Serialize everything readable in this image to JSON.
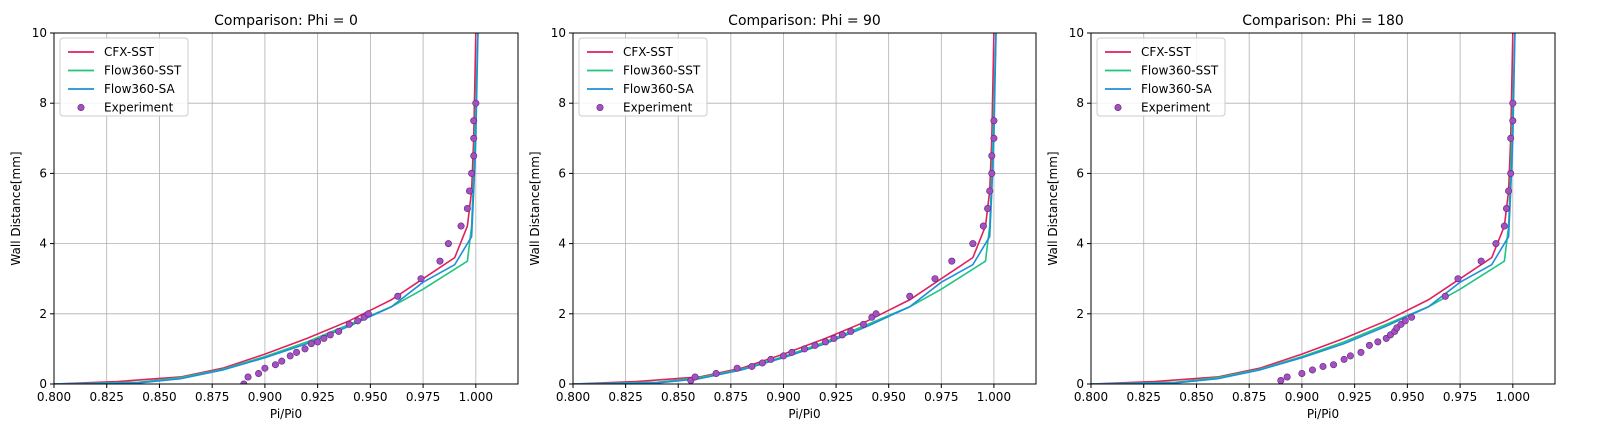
{
  "chart_data": [
    {
      "type": "line",
      "title": "Comparison: Phi = 0",
      "xlabel": "Pi/Pi0",
      "ylabel": "Wall Distance[mm]",
      "xlim": [
        0.8,
        1.02
      ],
      "ylim": [
        0,
        10
      ],
      "xticks": [
        "0.800",
        "0.825",
        "0.850",
        "0.875",
        "0.900",
        "0.925",
        "0.950",
        "0.975",
        "1.000"
      ],
      "yticks": [
        "0",
        "2",
        "4",
        "6",
        "8",
        "10"
      ],
      "grid": true,
      "legend": "top-left",
      "series": [
        {
          "name": "CFX-SST",
          "kind": "line",
          "color": "#e0215e",
          "points": [
            [
              0.8,
              0
            ],
            [
              0.83,
              0.07
            ],
            [
              0.86,
              0.2
            ],
            [
              0.88,
              0.45
            ],
            [
              0.9,
              0.85
            ],
            [
              0.92,
              1.3
            ],
            [
              0.94,
              1.8
            ],
            [
              0.96,
              2.4
            ],
            [
              0.975,
              3.0
            ],
            [
              0.99,
              3.6
            ],
            [
              0.996,
              4.5
            ],
            [
              0.998,
              5.5
            ],
            [
              0.999,
              7.0
            ],
            [
              1.0,
              10.0
            ]
          ]
        },
        {
          "name": "Flow360-SST",
          "kind": "line",
          "color": "#1fc47f",
          "points": [
            [
              0.8,
              0
            ],
            [
              0.84,
              0.05
            ],
            [
              0.86,
              0.18
            ],
            [
              0.88,
              0.42
            ],
            [
              0.9,
              0.78
            ],
            [
              0.92,
              1.2
            ],
            [
              0.94,
              1.7
            ],
            [
              0.96,
              2.2
            ],
            [
              0.975,
              2.7
            ],
            [
              0.996,
              3.5
            ],
            [
              0.998,
              4.5
            ],
            [
              0.999,
              6.0
            ],
            [
              1.0,
              8.0
            ],
            [
              1.001,
              10.0
            ]
          ]
        },
        {
          "name": "Flow360-SA",
          "kind": "line",
          "color": "#1f8fdc",
          "points": [
            [
              0.8,
              0
            ],
            [
              0.84,
              0.03
            ],
            [
              0.86,
              0.15
            ],
            [
              0.88,
              0.4
            ],
            [
              0.9,
              0.75
            ],
            [
              0.92,
              1.15
            ],
            [
              0.94,
              1.65
            ],
            [
              0.96,
              2.2
            ],
            [
              0.975,
              2.9
            ],
            [
              0.99,
              3.4
            ],
            [
              0.998,
              4.2
            ],
            [
              0.999,
              5.5
            ],
            [
              1.0,
              7.0
            ],
            [
              1.001,
              10.0
            ]
          ]
        },
        {
          "name": "Experiment",
          "kind": "scatter",
          "color": "#a64fc4",
          "points": [
            [
              0.89,
              0
            ],
            [
              0.892,
              0.2
            ],
            [
              0.897,
              0.3
            ],
            [
              0.9,
              0.45
            ],
            [
              0.905,
              0.55
            ],
            [
              0.908,
              0.65
            ],
            [
              0.912,
              0.8
            ],
            [
              0.915,
              0.9
            ],
            [
              0.919,
              1.0
            ],
            [
              0.922,
              1.15
            ],
            [
              0.925,
              1.2
            ],
            [
              0.928,
              1.3
            ],
            [
              0.931,
              1.4
            ],
            [
              0.935,
              1.5
            ],
            [
              0.94,
              1.7
            ],
            [
              0.944,
              1.8
            ],
            [
              0.947,
              1.9
            ],
            [
              0.949,
              2.0
            ],
            [
              0.963,
              2.5
            ],
            [
              0.974,
              3.0
            ],
            [
              0.983,
              3.5
            ],
            [
              0.987,
              4.0
            ],
            [
              0.993,
              4.5
            ],
            [
              0.996,
              5.0
            ],
            [
              0.997,
              5.5
            ],
            [
              0.998,
              6.0
            ],
            [
              0.999,
              6.5
            ],
            [
              0.999,
              7.0
            ],
            [
              0.999,
              7.5
            ],
            [
              1.0,
              8.0
            ]
          ]
        }
      ]
    },
    {
      "type": "line",
      "title": "Comparison: Phi = 90",
      "xlabel": "Pi/Pi0",
      "ylabel": "Wall Distance[mm]",
      "xlim": [
        0.8,
        1.02
      ],
      "ylim": [
        0,
        10
      ],
      "xticks": [
        "0.800",
        "0.825",
        "0.850",
        "0.875",
        "0.900",
        "0.925",
        "0.950",
        "0.975",
        "1.000"
      ],
      "yticks": [
        "0",
        "2",
        "4",
        "6",
        "8",
        "10"
      ],
      "grid": true,
      "legend": "top-left",
      "series": [
        {
          "name": "CFX-SST",
          "kind": "line",
          "color": "#e0215e",
          "points": [
            [
              0.8,
              0
            ],
            [
              0.83,
              0.07
            ],
            [
              0.86,
              0.2
            ],
            [
              0.88,
              0.45
            ],
            [
              0.9,
              0.85
            ],
            [
              0.92,
              1.3
            ],
            [
              0.94,
              1.8
            ],
            [
              0.96,
              2.4
            ],
            [
              0.975,
              3.0
            ],
            [
              0.99,
              3.6
            ],
            [
              0.996,
              4.5
            ],
            [
              0.998,
              5.5
            ],
            [
              0.999,
              7.0
            ],
            [
              1.0,
              10.0
            ]
          ]
        },
        {
          "name": "Flow360-SST",
          "kind": "line",
          "color": "#1fc47f",
          "points": [
            [
              0.8,
              0
            ],
            [
              0.84,
              0.05
            ],
            [
              0.86,
              0.18
            ],
            [
              0.88,
              0.42
            ],
            [
              0.9,
              0.78
            ],
            [
              0.92,
              1.2
            ],
            [
              0.94,
              1.7
            ],
            [
              0.96,
              2.2
            ],
            [
              0.975,
              2.7
            ],
            [
              0.996,
              3.5
            ],
            [
              0.998,
              4.5
            ],
            [
              0.999,
              6.0
            ],
            [
              1.0,
              8.0
            ],
            [
              1.001,
              10.0
            ]
          ]
        },
        {
          "name": "Flow360-SA",
          "kind": "line",
          "color": "#1f8fdc",
          "points": [
            [
              0.8,
              0
            ],
            [
              0.84,
              0.03
            ],
            [
              0.86,
              0.15
            ],
            [
              0.88,
              0.4
            ],
            [
              0.9,
              0.75
            ],
            [
              0.92,
              1.15
            ],
            [
              0.94,
              1.65
            ],
            [
              0.96,
              2.2
            ],
            [
              0.975,
              2.9
            ],
            [
              0.99,
              3.4
            ],
            [
              0.998,
              4.2
            ],
            [
              0.999,
              5.5
            ],
            [
              1.0,
              7.0
            ],
            [
              1.001,
              10.0
            ]
          ]
        },
        {
          "name": "Experiment",
          "kind": "scatter",
          "color": "#a64fc4",
          "points": [
            [
              0.856,
              0.1
            ],
            [
              0.858,
              0.2
            ],
            [
              0.868,
              0.3
            ],
            [
              0.878,
              0.45
            ],
            [
              0.885,
              0.5
            ],
            [
              0.89,
              0.6
            ],
            [
              0.894,
              0.7
            ],
            [
              0.9,
              0.8
            ],
            [
              0.904,
              0.9
            ],
            [
              0.91,
              1.0
            ],
            [
              0.915,
              1.1
            ],
            [
              0.92,
              1.2
            ],
            [
              0.924,
              1.3
            ],
            [
              0.928,
              1.4
            ],
            [
              0.932,
              1.5
            ],
            [
              0.938,
              1.7
            ],
            [
              0.942,
              1.9
            ],
            [
              0.944,
              2.0
            ],
            [
              0.96,
              2.5
            ],
            [
              0.972,
              3.0
            ],
            [
              0.98,
              3.5
            ],
            [
              0.99,
              4.0
            ],
            [
              0.995,
              4.5
            ],
            [
              0.997,
              5.0
            ],
            [
              0.998,
              5.5
            ],
            [
              0.999,
              6.0
            ],
            [
              0.999,
              6.5
            ],
            [
              1.0,
              7.0
            ],
            [
              1.0,
              7.5
            ]
          ]
        }
      ]
    },
    {
      "type": "line",
      "title": "Comparison: Phi = 180",
      "xlabel": "Pi/Pi0",
      "ylabel": "Wall Distance[mm]",
      "xlim": [
        0.8,
        1.02
      ],
      "ylim": [
        0,
        10
      ],
      "xticks": [
        "0.800",
        "0.825",
        "0.850",
        "0.875",
        "0.900",
        "0.925",
        "0.950",
        "0.975",
        "1.000"
      ],
      "yticks": [
        "0",
        "2",
        "4",
        "6",
        "8",
        "10"
      ],
      "grid": true,
      "legend": "top-left",
      "series": [
        {
          "name": "CFX-SST",
          "kind": "line",
          "color": "#e0215e",
          "points": [
            [
              0.8,
              0
            ],
            [
              0.83,
              0.07
            ],
            [
              0.86,
              0.2
            ],
            [
              0.88,
              0.45
            ],
            [
              0.9,
              0.85
            ],
            [
              0.92,
              1.3
            ],
            [
              0.94,
              1.8
            ],
            [
              0.96,
              2.4
            ],
            [
              0.975,
              3.0
            ],
            [
              0.99,
              3.6
            ],
            [
              0.996,
              4.5
            ],
            [
              0.998,
              5.5
            ],
            [
              0.999,
              7.0
            ],
            [
              1.0,
              10.0
            ]
          ]
        },
        {
          "name": "Flow360-SST",
          "kind": "line",
          "color": "#1fc47f",
          "points": [
            [
              0.8,
              0
            ],
            [
              0.84,
              0.05
            ],
            [
              0.86,
              0.18
            ],
            [
              0.88,
              0.42
            ],
            [
              0.9,
              0.78
            ],
            [
              0.92,
              1.2
            ],
            [
              0.94,
              1.7
            ],
            [
              0.96,
              2.2
            ],
            [
              0.975,
              2.7
            ],
            [
              0.996,
              3.5
            ],
            [
              0.998,
              4.5
            ],
            [
              0.999,
              6.0
            ],
            [
              1.0,
              8.0
            ],
            [
              1.001,
              10.0
            ]
          ]
        },
        {
          "name": "Flow360-SA",
          "kind": "line",
          "color": "#1f8fdc",
          "points": [
            [
              0.8,
              0
            ],
            [
              0.84,
              0.03
            ],
            [
              0.86,
              0.15
            ],
            [
              0.88,
              0.4
            ],
            [
              0.9,
              0.75
            ],
            [
              0.92,
              1.15
            ],
            [
              0.94,
              1.65
            ],
            [
              0.96,
              2.2
            ],
            [
              0.975,
              2.9
            ],
            [
              0.99,
              3.4
            ],
            [
              0.998,
              4.2
            ],
            [
              0.999,
              5.5
            ],
            [
              1.0,
              7.0
            ],
            [
              1.001,
              10.0
            ]
          ]
        },
        {
          "name": "Experiment",
          "kind": "scatter",
          "color": "#a64fc4",
          "points": [
            [
              0.89,
              0.1
            ],
            [
              0.893,
              0.2
            ],
            [
              0.9,
              0.3
            ],
            [
              0.905,
              0.4
            ],
            [
              0.91,
              0.5
            ],
            [
              0.915,
              0.55
            ],
            [
              0.92,
              0.7
            ],
            [
              0.923,
              0.8
            ],
            [
              0.928,
              0.9
            ],
            [
              0.932,
              1.1
            ],
            [
              0.936,
              1.2
            ],
            [
              0.94,
              1.3
            ],
            [
              0.942,
              1.4
            ],
            [
              0.944,
              1.5
            ],
            [
              0.945,
              1.6
            ],
            [
              0.947,
              1.7
            ],
            [
              0.949,
              1.8
            ],
            [
              0.952,
              1.9
            ],
            [
              0.968,
              2.5
            ],
            [
              0.974,
              3.0
            ],
            [
              0.985,
              3.5
            ],
            [
              0.992,
              4.0
            ],
            [
              0.996,
              4.5
            ],
            [
              0.997,
              5.0
            ],
            [
              0.998,
              5.5
            ],
            [
              0.999,
              6.0
            ],
            [
              0.999,
              7.0
            ],
            [
              1.0,
              7.5
            ],
            [
              1.0,
              8.0
            ]
          ]
        }
      ]
    }
  ]
}
